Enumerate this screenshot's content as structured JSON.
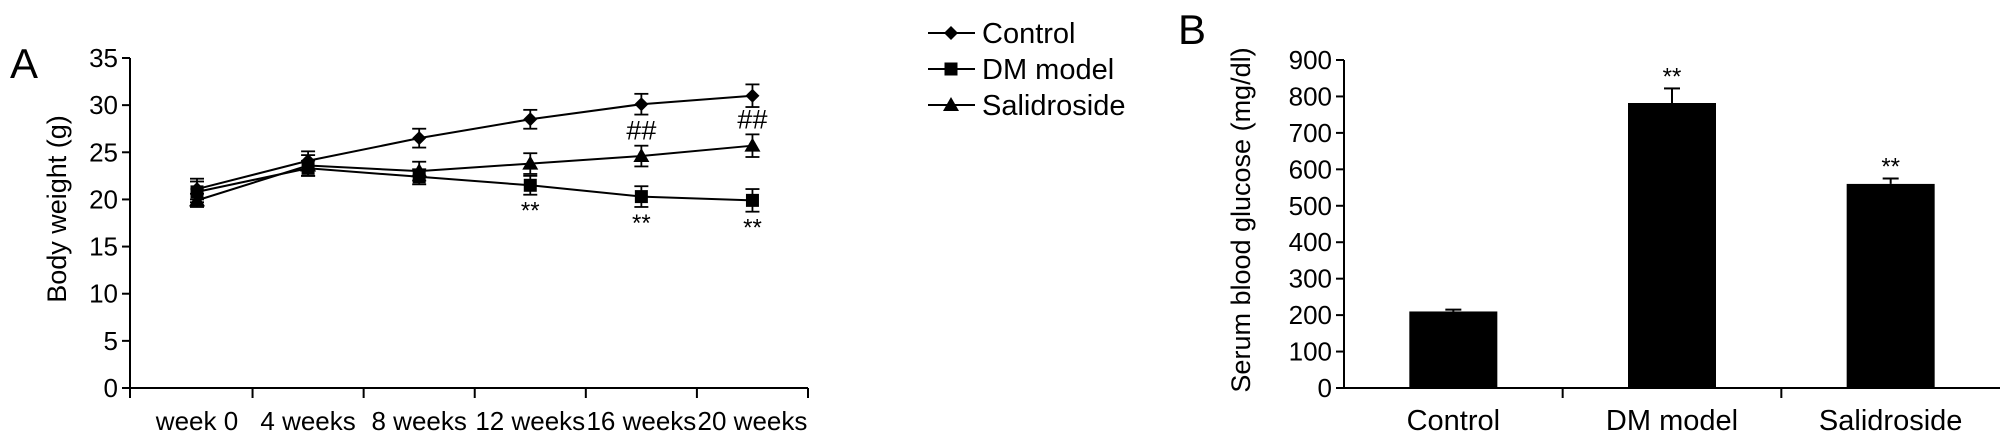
{
  "chart_data": [
    {
      "panel_label": "A",
      "type": "line",
      "ylabel": "Body weight (g)",
      "ylim": [
        0,
        35
      ],
      "y_ticks": [
        "0",
        "5",
        "10",
        "15",
        "20",
        "25",
        "30",
        "35"
      ],
      "categories": [
        "week 0",
        "4 weeks",
        "8 weeks",
        "12 weeks",
        "16 weeks",
        "20 weeks"
      ],
      "grid": false,
      "legend_position": "top-right, outside plot",
      "series": [
        {
          "name": "Control",
          "marker": "diamond",
          "values": [
            21.1,
            24.1,
            26.5,
            28.5,
            30.1,
            31.0
          ],
          "errors": [
            1.1,
            1.0,
            1.0,
            1.0,
            1.1,
            1.2
          ]
        },
        {
          "name": "DM model",
          "marker": "square",
          "values": [
            20.8,
            23.3,
            22.4,
            21.5,
            20.3,
            19.9
          ],
          "errors": [
            1.1,
            0.8,
            0.8,
            1.0,
            1.1,
            1.2
          ]
        },
        {
          "name": "Salidroside",
          "marker": "triangle",
          "values": [
            19.9,
            23.6,
            23.0,
            23.8,
            24.6,
            25.7
          ],
          "errors": [
            0.7,
            1.1,
            1.0,
            1.1,
            1.1,
            1.2
          ]
        }
      ],
      "annotations": [
        {
          "text": "**",
          "series": "DM model",
          "category": "12 weeks"
        },
        {
          "text": "**",
          "series": "DM model",
          "category": "16 weeks"
        },
        {
          "text": "**",
          "series": "DM model",
          "category": "20 weeks"
        },
        {
          "text": "##",
          "series": "Salidroside",
          "category": "16 weeks"
        },
        {
          "text": "##",
          "series": "Salidroside",
          "category": "20 weeks"
        }
      ]
    },
    {
      "panel_label": "B",
      "type": "bar",
      "ylabel": "Serum blood glucose (mg/dl)",
      "ylim": [
        0,
        900
      ],
      "y_ticks": [
        "0",
        "100",
        "200",
        "300",
        "400",
        "500",
        "600",
        "700",
        "800",
        "900"
      ],
      "categories": [
        "Control",
        "DM model",
        "Salidroside"
      ],
      "values": [
        210,
        782,
        560
      ],
      "errors": [
        5,
        40,
        15
      ],
      "bar_color": "#000000",
      "grid": false,
      "annotations": [
        {
          "text": "",
          "category": "Control"
        },
        {
          "text": "**",
          "category": "DM model"
        },
        {
          "text": "**",
          "category": "Salidroside"
        }
      ]
    }
  ]
}
